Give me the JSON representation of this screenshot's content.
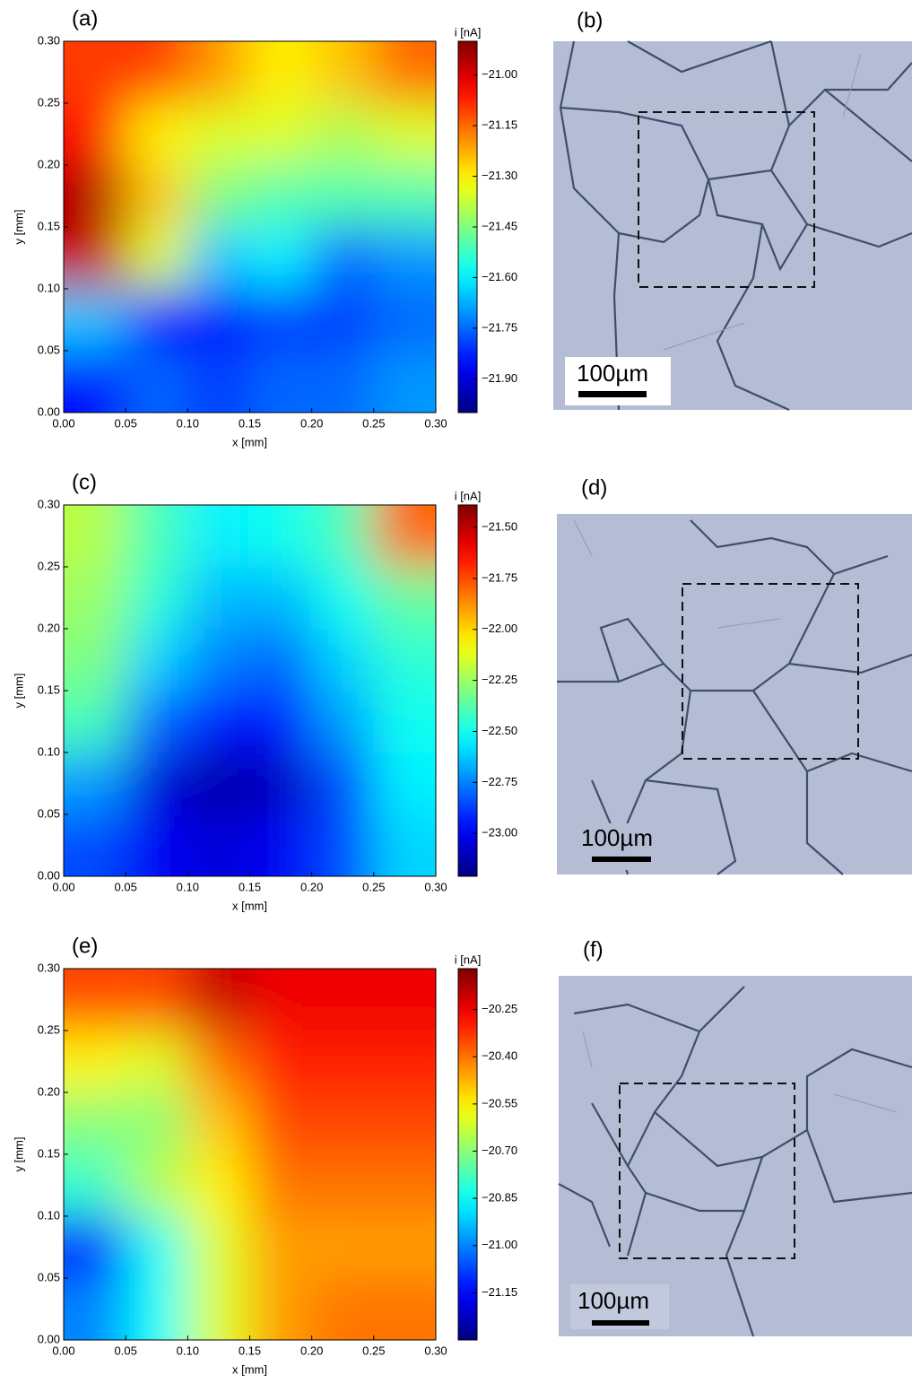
{
  "chart_data": [
    {
      "type": "heatmap",
      "panel": "(a)",
      "xlabel": "x [mm]",
      "ylabel": "y [mm]",
      "colorbar_label": "i [nA]",
      "xlim": [
        0,
        0.3
      ],
      "ylim": [
        0,
        0.3
      ],
      "clim": [
        -22.0,
        -20.9
      ],
      "xticks": [
        {
          "value": 0,
          "label": "0.00"
        },
        {
          "value": 0.05,
          "label": "0.05"
        },
        {
          "value": 0.1,
          "label": "0.10"
        },
        {
          "value": 0.15,
          "label": "0.15"
        },
        {
          "value": 0.2,
          "label": "0.20"
        },
        {
          "value": 0.25,
          "label": "0.25"
        },
        {
          "value": 0.3,
          "label": "0.30"
        }
      ],
      "yticks": [
        {
          "value": 0,
          "label": "0.00"
        },
        {
          "value": 0.05,
          "label": "0.05"
        },
        {
          "value": 0.1,
          "label": "0.10"
        },
        {
          "value": 0.15,
          "label": "0.15"
        },
        {
          "value": 0.2,
          "label": "0.20"
        },
        {
          "value": 0.25,
          "label": "0.25"
        },
        {
          "value": 0.3,
          "label": "0.30"
        }
      ],
      "cticks": [
        {
          "value": -21.0,
          "label": "−21.00"
        },
        {
          "value": -21.15,
          "label": "−21.15"
        },
        {
          "value": -21.3,
          "label": "−21.30"
        },
        {
          "value": -21.45,
          "label": "−21.45"
        },
        {
          "value": -21.6,
          "label": "−21.60"
        },
        {
          "value": -21.75,
          "label": "−21.75"
        },
        {
          "value": -21.9,
          "label": "−21.90"
        }
      ],
      "z": [
        [
          -21.1,
          -21.1,
          -21.2,
          -21.3,
          -21.25,
          -21.15
        ],
        [
          -21.05,
          -21.3,
          -21.35,
          -21.35,
          -21.4,
          -21.35
        ],
        [
          -20.95,
          -21.25,
          -21.45,
          -21.5,
          -21.5,
          -21.5
        ],
        [
          -20.98,
          -21.35,
          -21.65,
          -21.6,
          -21.75,
          -21.7
        ],
        [
          -21.65,
          -21.85,
          -21.85,
          -21.8,
          -21.8,
          -21.75
        ],
        [
          -21.85,
          -21.75,
          -21.8,
          -21.75,
          -21.75,
          -21.7
        ]
      ]
    },
    {
      "type": "heatmap",
      "panel": "(c)",
      "xlabel": "x [mm]",
      "ylabel": "y [mm]",
      "colorbar_label": "i [nA]",
      "xlim": [
        0,
        0.3
      ],
      "ylim": [
        0,
        0.3
      ],
      "clim": [
        -23.21,
        -21.39
      ],
      "xticks": [
        {
          "value": 0,
          "label": "0.00"
        },
        {
          "value": 0.05,
          "label": "0.05"
        },
        {
          "value": 0.1,
          "label": "0.10"
        },
        {
          "value": 0.15,
          "label": "0.15"
        },
        {
          "value": 0.2,
          "label": "0.20"
        },
        {
          "value": 0.25,
          "label": "0.25"
        },
        {
          "value": 0.3,
          "label": "0.30"
        }
      ],
      "yticks": [
        {
          "value": 0,
          "label": "0.00"
        },
        {
          "value": 0.05,
          "label": "0.05"
        },
        {
          "value": 0.1,
          "label": "0.10"
        },
        {
          "value": 0.15,
          "label": "0.15"
        },
        {
          "value": 0.2,
          "label": "0.20"
        },
        {
          "value": 0.25,
          "label": "0.25"
        },
        {
          "value": 0.3,
          "label": "0.30"
        }
      ],
      "cticks": [
        {
          "value": -21.5,
          "label": "−21.50"
        },
        {
          "value": -21.75,
          "label": "−21.75"
        },
        {
          "value": -22.0,
          "label": "−22.00"
        },
        {
          "value": -22.25,
          "label": "−22.25"
        },
        {
          "value": -22.5,
          "label": "−22.50"
        },
        {
          "value": -22.75,
          "label": "−22.75"
        },
        {
          "value": -23.0,
          "label": "−23.00"
        }
      ],
      "z": [
        [
          -22.2,
          -22.4,
          -22.55,
          -22.5,
          -22.4,
          -21.8
        ],
        [
          -22.25,
          -22.45,
          -22.65,
          -22.65,
          -22.5,
          -22.35
        ],
        [
          -22.3,
          -22.6,
          -22.75,
          -22.8,
          -22.6,
          -22.45
        ],
        [
          -22.4,
          -22.8,
          -22.95,
          -22.95,
          -22.7,
          -22.5
        ],
        [
          -22.7,
          -23.05,
          -23.15,
          -23.1,
          -22.85,
          -22.55
        ],
        [
          -22.85,
          -23.0,
          -23.05,
          -23.0,
          -22.85,
          -22.6
        ]
      ]
    },
    {
      "type": "heatmap",
      "panel": "(e)",
      "xlabel": "x [mm]",
      "ylabel": "y [mm]",
      "colorbar_label": "i [nA]",
      "xlim": [
        0,
        0.3
      ],
      "ylim": [
        0,
        0.3
      ],
      "clim": [
        -21.3,
        -20.12
      ],
      "xticks": [
        {
          "value": 0,
          "label": "0.00"
        },
        {
          "value": 0.05,
          "label": "0.05"
        },
        {
          "value": 0.1,
          "label": "0.10"
        },
        {
          "value": 0.15,
          "label": "0.15"
        },
        {
          "value": 0.2,
          "label": "0.20"
        },
        {
          "value": 0.25,
          "label": "0.25"
        },
        {
          "value": 0.3,
          "label": "0.30"
        }
      ],
      "yticks": [
        {
          "value": 0,
          "label": "0.00"
        },
        {
          "value": 0.05,
          "label": "0.05"
        },
        {
          "value": 0.1,
          "label": "0.10"
        },
        {
          "value": 0.15,
          "label": "0.15"
        },
        {
          "value": 0.2,
          "label": "0.20"
        },
        {
          "value": 0.25,
          "label": "0.25"
        },
        {
          "value": 0.3,
          "label": "0.30"
        }
      ],
      "cticks": [
        {
          "value": -20.25,
          "label": "−20.25"
        },
        {
          "value": -20.4,
          "label": "−20.40"
        },
        {
          "value": -20.55,
          "label": "−20.55"
        },
        {
          "value": -20.7,
          "label": "−20.70"
        },
        {
          "value": -20.85,
          "label": "−20.85"
        },
        {
          "value": -21.0,
          "label": "−21.00"
        },
        {
          "value": -21.15,
          "label": "−21.15"
        }
      ],
      "z": [
        [
          -20.35,
          -20.35,
          -20.2,
          -20.25,
          -20.25,
          -20.25
        ],
        [
          -20.55,
          -20.6,
          -20.4,
          -20.3,
          -20.3,
          -20.3
        ],
        [
          -20.7,
          -20.7,
          -20.5,
          -20.35,
          -20.35,
          -20.35
        ],
        [
          -20.8,
          -20.65,
          -20.55,
          -20.4,
          -20.4,
          -20.4
        ],
        [
          -21.15,
          -20.85,
          -20.6,
          -20.45,
          -20.45,
          -20.45
        ],
        [
          -21.0,
          -20.85,
          -20.6,
          -20.45,
          -20.4,
          -20.4
        ]
      ]
    }
  ],
  "micrographs": [
    {
      "panel": "(b)",
      "scale_bar": "100µm"
    },
    {
      "panel": "(d)",
      "scale_bar": "100µm"
    },
    {
      "panel": "(f)",
      "scale_bar": "100µm"
    }
  ]
}
